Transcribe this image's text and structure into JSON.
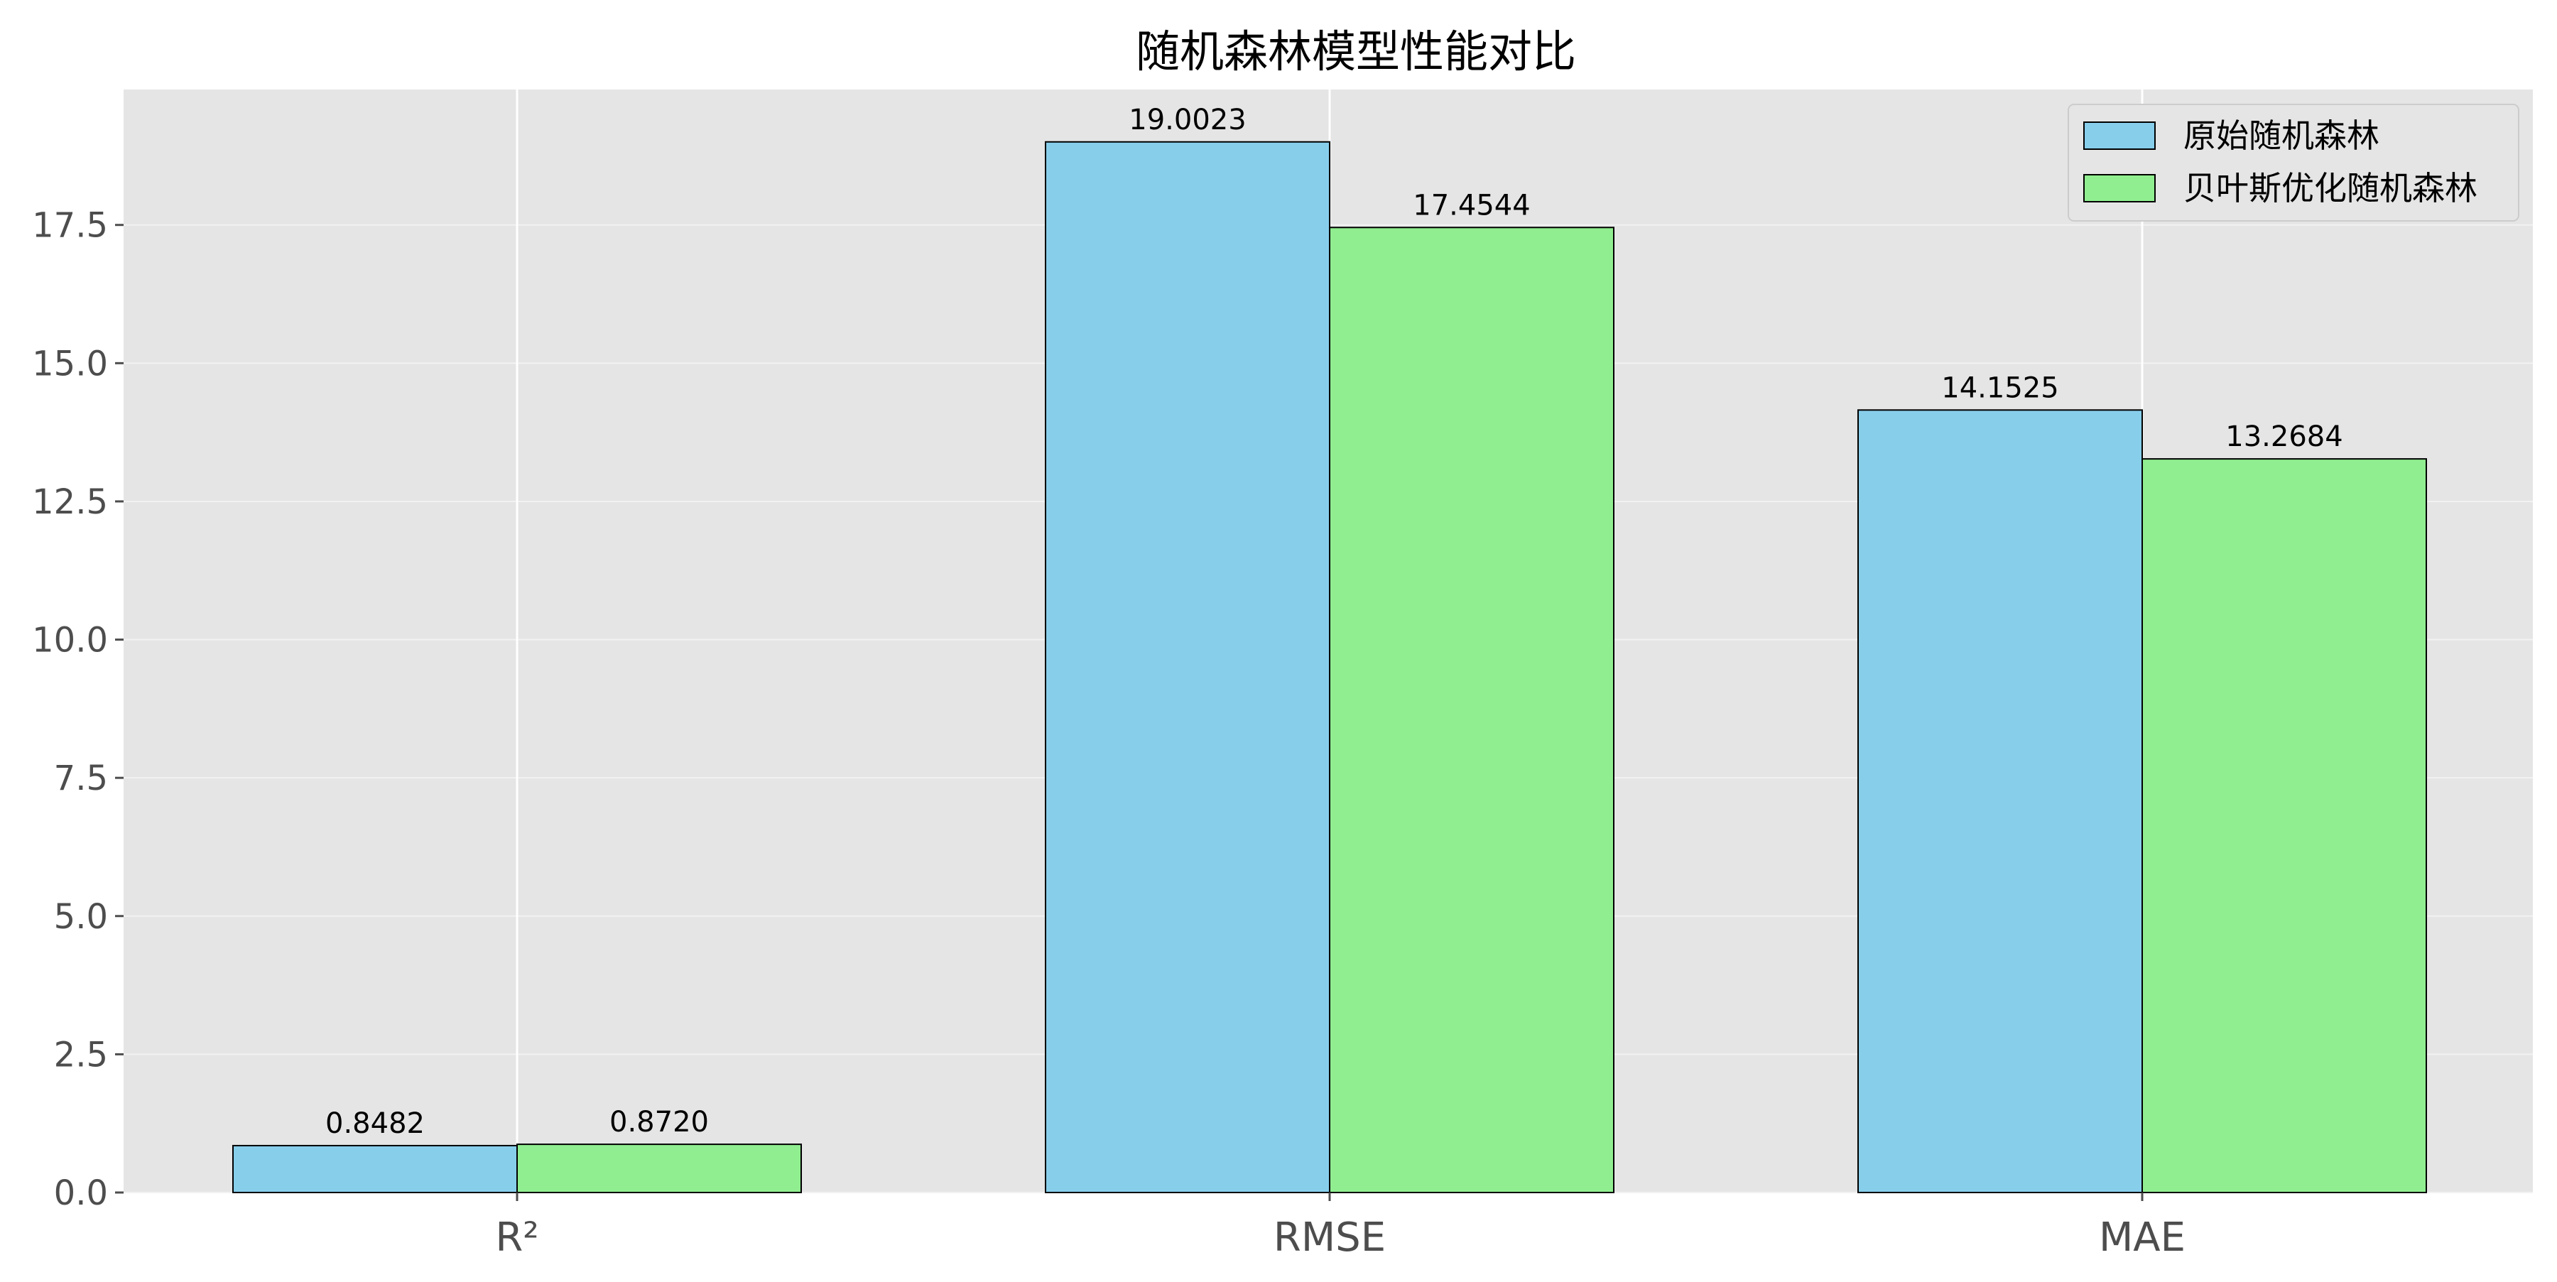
{
  "chart_data": {
    "type": "bar",
    "title": "随机森林模型性能对比",
    "categories": [
      "R²",
      "RMSE",
      "MAE"
    ],
    "series": [
      {
        "name": "原始随机森林",
        "values": [
          0.8482,
          19.0023,
          14.1525
        ],
        "labels": [
          "0.8482",
          "19.0023",
          "14.1525"
        ],
        "color": "#87CEEB"
      },
      {
        "name": "贝叶斯优化随机森林",
        "values": [
          0.872,
          17.4544,
          13.2684
        ],
        "labels": [
          "0.8720",
          "17.4544",
          "13.2684"
        ],
        "color": "#90EE90"
      }
    ],
    "yticks": [
      "0.0",
      "2.5",
      "5.0",
      "7.5",
      "10.0",
      "12.5",
      "15.0",
      "17.5"
    ],
    "ylim": [
      0,
      19.95
    ],
    "grid": true,
    "legend_position": "top-right",
    "background_color": "#E5E5E5",
    "edge_color": "#000000"
  }
}
